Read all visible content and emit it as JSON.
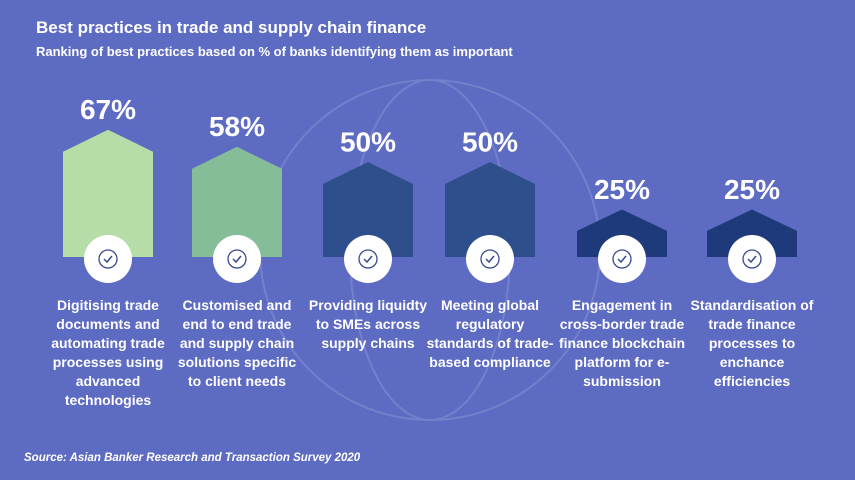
{
  "chart_data": {
    "type": "bar",
    "title": "Best practices in trade and supply chain finance",
    "subtitle": "Ranking of best practices based on % of banks identifying them as important",
    "categories": [
      "Digitising trade documents and automating trade processes using advanced technologies",
      "Customised and end to end trade and supply chain solutions specific to client needs",
      "Providing liquidty to SMEs across supply chains",
      "Meeting global regulatory standards of trade-based compliance",
      "Engagement in cross-border trade finance blockchain platform for e-submission",
      "Standardisation of trade finance processes to enchance efficiencies"
    ],
    "values": [
      67,
      58,
      50,
      50,
      25,
      25
    ],
    "value_labels": [
      "67%",
      "58%",
      "50%",
      "50%",
      "25%",
      "25%"
    ],
    "colors": [
      "#b6dca8",
      "#86bd99",
      "#2f4f8c",
      "#2f4f8c",
      "#1f3a7a",
      "#1f3a7a"
    ],
    "source": "Source: Asian Banker Research and Transaction Survey 2020"
  }
}
